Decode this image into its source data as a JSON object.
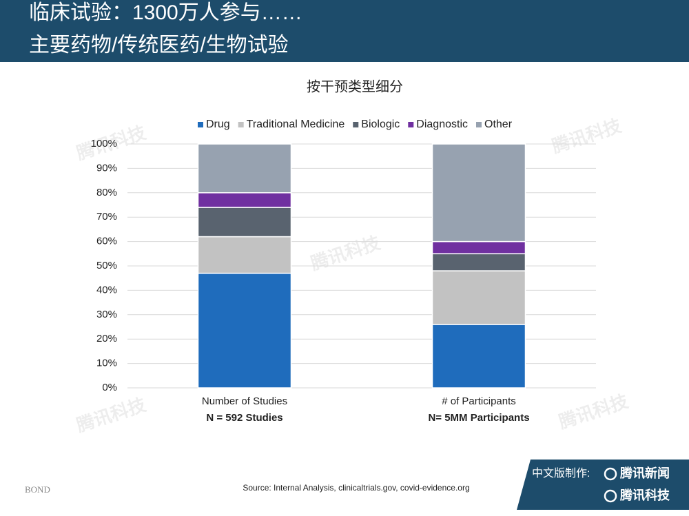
{
  "header": {
    "title_line1": "临床试验：1300万人参与……",
    "title_line2": "主要药物/传统医药/生物试验"
  },
  "chart_data": {
    "type": "stacked_bar",
    "title": "按干预类型细分",
    "categories": [
      "Number of Studies",
      "# of Participants"
    ],
    "category_notes": [
      "N = 592 Studies",
      "N= 5MM Participants"
    ],
    "series": [
      {
        "name": "Drug",
        "color": "#1f6cbc",
        "values": [
          47,
          26
        ]
      },
      {
        "name": "Traditional Medicine",
        "color": "#c2c2c2",
        "values": [
          15,
          22
        ]
      },
      {
        "name": "Biologic",
        "color": "#59636f",
        "values": [
          12,
          7
        ]
      },
      {
        "name": "Diagnostic",
        "color": "#7030a0",
        "values": [
          6,
          5
        ]
      },
      {
        "name": "Other",
        "color": "#97a2b0",
        "values": [
          20,
          40
        ]
      }
    ],
    "ylim": [
      0,
      100
    ],
    "yticks": [
      {
        "value": 0,
        "label": "0%"
      },
      {
        "value": 10,
        "label": "10%"
      },
      {
        "value": 20,
        "label": "20%"
      },
      {
        "value": 30,
        "label": "30%"
      },
      {
        "value": 40,
        "label": "40%"
      },
      {
        "value": 50,
        "label": "50%"
      },
      {
        "value": 60,
        "label": "60%"
      },
      {
        "value": 70,
        "label": "70%"
      },
      {
        "value": 80,
        "label": "80%"
      },
      {
        "value": 90,
        "label": "90%"
      },
      {
        "value": 100,
        "label": "100%"
      }
    ],
    "grid": true,
    "legend": "top"
  },
  "footer": {
    "brand": "BOND",
    "source": "Source: Internal Analysis, clinicaltrials.gov, covid-evidence.org",
    "credit_label": "中文版制作:",
    "credit_1": "腾讯新闻",
    "credit_2": "腾讯科技"
  },
  "watermark": "腾讯科技"
}
